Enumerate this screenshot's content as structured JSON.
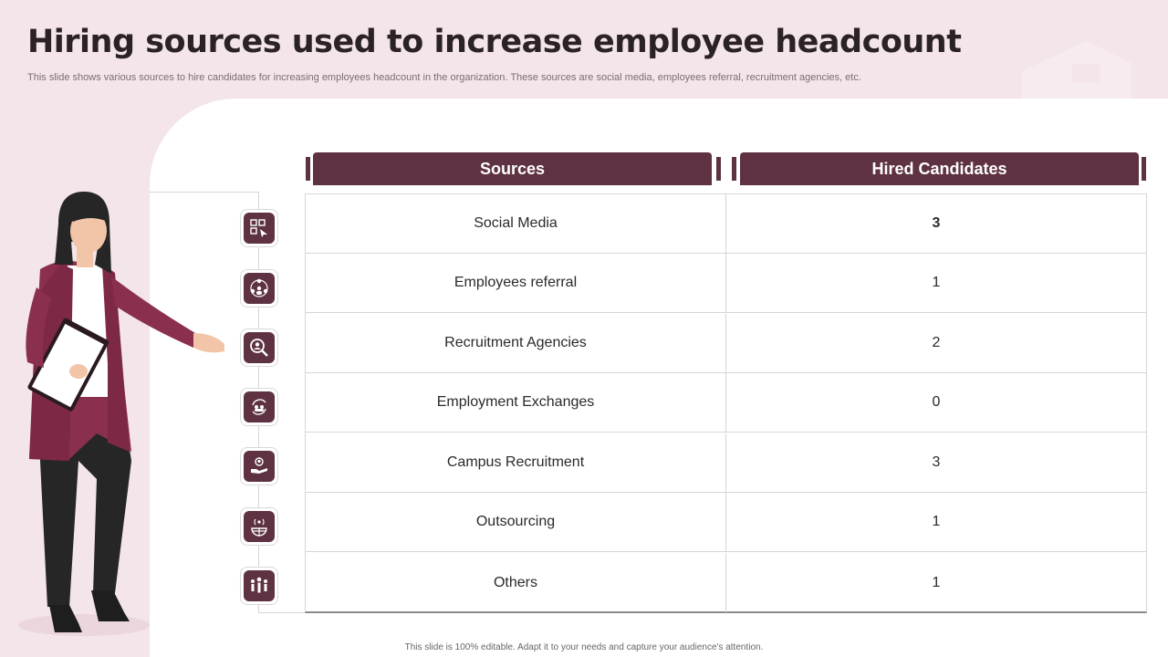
{
  "slide": {
    "title": "Hiring sources used to increase employee headcount",
    "subtitle": "This slide shows various sources to hire candidates for increasing employees headcount in the organization. These sources are social media, employees referral, recruitment agencies, etc.",
    "footer": "This slide is 100% editable.  Adapt it to your needs and capture your audience's attention."
  },
  "table": {
    "headers": [
      "Sources",
      "Hired Candidates"
    ],
    "rows": [
      {
        "source": "Social Media",
        "hired": "3",
        "icon": "social-media-icon"
      },
      {
        "source": "Employees referral",
        "hired": "1",
        "icon": "network-people-icon"
      },
      {
        "source": "Recruitment Agencies",
        "hired": "2",
        "icon": "magnifier-person-icon"
      },
      {
        "source": "Employment Exchanges",
        "hired": "0",
        "icon": "exchange-people-icon"
      },
      {
        "source": "Campus Recruitment",
        "hired": "3",
        "icon": "hand-person-icon"
      },
      {
        "source": "Outsourcing",
        "hired": "1",
        "icon": "globe-signal-icon"
      },
      {
        "source": "Others",
        "hired": "1",
        "icon": "group-people-icon"
      }
    ]
  },
  "colors": {
    "accent": "#5e3242",
    "background": "#f3e5e9",
    "coat": "#8b2f4e"
  }
}
